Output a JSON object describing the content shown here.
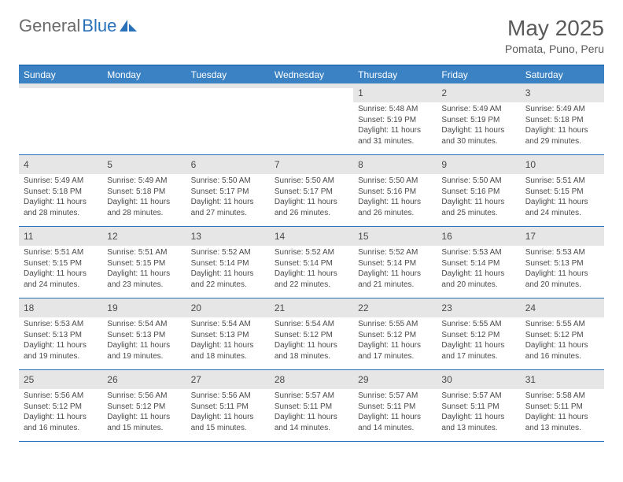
{
  "brand": {
    "text1": "General",
    "text2": "Blue",
    "shape_color": "#2971b8"
  },
  "header": {
    "title": "May 2025",
    "subtitle": "Pomata, Puno, Peru"
  },
  "styling": {
    "header_bg": "#3b82c4",
    "border_color": "#2971b8",
    "daynum_bg": "#e6e6e6",
    "text_color": "#4a4a4a",
    "body_font_size": 10,
    "weekday_font_size": 12
  },
  "weekdays": [
    "Sunday",
    "Monday",
    "Tuesday",
    "Wednesday",
    "Thursday",
    "Friday",
    "Saturday"
  ],
  "weeks": [
    [
      {
        "empty": true
      },
      {
        "empty": true
      },
      {
        "empty": true
      },
      {
        "empty": true
      },
      {
        "day": "1",
        "sunrise": "Sunrise: 5:48 AM",
        "sunset": "Sunset: 5:19 PM",
        "daylight": "Daylight: 11 hours and 31 minutes."
      },
      {
        "day": "2",
        "sunrise": "Sunrise: 5:49 AM",
        "sunset": "Sunset: 5:19 PM",
        "daylight": "Daylight: 11 hours and 30 minutes."
      },
      {
        "day": "3",
        "sunrise": "Sunrise: 5:49 AM",
        "sunset": "Sunset: 5:18 PM",
        "daylight": "Daylight: 11 hours and 29 minutes."
      }
    ],
    [
      {
        "day": "4",
        "sunrise": "Sunrise: 5:49 AM",
        "sunset": "Sunset: 5:18 PM",
        "daylight": "Daylight: 11 hours and 28 minutes."
      },
      {
        "day": "5",
        "sunrise": "Sunrise: 5:49 AM",
        "sunset": "Sunset: 5:18 PM",
        "daylight": "Daylight: 11 hours and 28 minutes."
      },
      {
        "day": "6",
        "sunrise": "Sunrise: 5:50 AM",
        "sunset": "Sunset: 5:17 PM",
        "daylight": "Daylight: 11 hours and 27 minutes."
      },
      {
        "day": "7",
        "sunrise": "Sunrise: 5:50 AM",
        "sunset": "Sunset: 5:17 PM",
        "daylight": "Daylight: 11 hours and 26 minutes."
      },
      {
        "day": "8",
        "sunrise": "Sunrise: 5:50 AM",
        "sunset": "Sunset: 5:16 PM",
        "daylight": "Daylight: 11 hours and 26 minutes."
      },
      {
        "day": "9",
        "sunrise": "Sunrise: 5:50 AM",
        "sunset": "Sunset: 5:16 PM",
        "daylight": "Daylight: 11 hours and 25 minutes."
      },
      {
        "day": "10",
        "sunrise": "Sunrise: 5:51 AM",
        "sunset": "Sunset: 5:15 PM",
        "daylight": "Daylight: 11 hours and 24 minutes."
      }
    ],
    [
      {
        "day": "11",
        "sunrise": "Sunrise: 5:51 AM",
        "sunset": "Sunset: 5:15 PM",
        "daylight": "Daylight: 11 hours and 24 minutes."
      },
      {
        "day": "12",
        "sunrise": "Sunrise: 5:51 AM",
        "sunset": "Sunset: 5:15 PM",
        "daylight": "Daylight: 11 hours and 23 minutes."
      },
      {
        "day": "13",
        "sunrise": "Sunrise: 5:52 AM",
        "sunset": "Sunset: 5:14 PM",
        "daylight": "Daylight: 11 hours and 22 minutes."
      },
      {
        "day": "14",
        "sunrise": "Sunrise: 5:52 AM",
        "sunset": "Sunset: 5:14 PM",
        "daylight": "Daylight: 11 hours and 22 minutes."
      },
      {
        "day": "15",
        "sunrise": "Sunrise: 5:52 AM",
        "sunset": "Sunset: 5:14 PM",
        "daylight": "Daylight: 11 hours and 21 minutes."
      },
      {
        "day": "16",
        "sunrise": "Sunrise: 5:53 AM",
        "sunset": "Sunset: 5:14 PM",
        "daylight": "Daylight: 11 hours and 20 minutes."
      },
      {
        "day": "17",
        "sunrise": "Sunrise: 5:53 AM",
        "sunset": "Sunset: 5:13 PM",
        "daylight": "Daylight: 11 hours and 20 minutes."
      }
    ],
    [
      {
        "day": "18",
        "sunrise": "Sunrise: 5:53 AM",
        "sunset": "Sunset: 5:13 PM",
        "daylight": "Daylight: 11 hours and 19 minutes."
      },
      {
        "day": "19",
        "sunrise": "Sunrise: 5:54 AM",
        "sunset": "Sunset: 5:13 PM",
        "daylight": "Daylight: 11 hours and 19 minutes."
      },
      {
        "day": "20",
        "sunrise": "Sunrise: 5:54 AM",
        "sunset": "Sunset: 5:13 PM",
        "daylight": "Daylight: 11 hours and 18 minutes."
      },
      {
        "day": "21",
        "sunrise": "Sunrise: 5:54 AM",
        "sunset": "Sunset: 5:12 PM",
        "daylight": "Daylight: 11 hours and 18 minutes."
      },
      {
        "day": "22",
        "sunrise": "Sunrise: 5:55 AM",
        "sunset": "Sunset: 5:12 PM",
        "daylight": "Daylight: 11 hours and 17 minutes."
      },
      {
        "day": "23",
        "sunrise": "Sunrise: 5:55 AM",
        "sunset": "Sunset: 5:12 PM",
        "daylight": "Daylight: 11 hours and 17 minutes."
      },
      {
        "day": "24",
        "sunrise": "Sunrise: 5:55 AM",
        "sunset": "Sunset: 5:12 PM",
        "daylight": "Daylight: 11 hours and 16 minutes."
      }
    ],
    [
      {
        "day": "25",
        "sunrise": "Sunrise: 5:56 AM",
        "sunset": "Sunset: 5:12 PM",
        "daylight": "Daylight: 11 hours and 16 minutes."
      },
      {
        "day": "26",
        "sunrise": "Sunrise: 5:56 AM",
        "sunset": "Sunset: 5:12 PM",
        "daylight": "Daylight: 11 hours and 15 minutes."
      },
      {
        "day": "27",
        "sunrise": "Sunrise: 5:56 AM",
        "sunset": "Sunset: 5:11 PM",
        "daylight": "Daylight: 11 hours and 15 minutes."
      },
      {
        "day": "28",
        "sunrise": "Sunrise: 5:57 AM",
        "sunset": "Sunset: 5:11 PM",
        "daylight": "Daylight: 11 hours and 14 minutes."
      },
      {
        "day": "29",
        "sunrise": "Sunrise: 5:57 AM",
        "sunset": "Sunset: 5:11 PM",
        "daylight": "Daylight: 11 hours and 14 minutes."
      },
      {
        "day": "30",
        "sunrise": "Sunrise: 5:57 AM",
        "sunset": "Sunset: 5:11 PM",
        "daylight": "Daylight: 11 hours and 13 minutes."
      },
      {
        "day": "31",
        "sunrise": "Sunrise: 5:58 AM",
        "sunset": "Sunset: 5:11 PM",
        "daylight": "Daylight: 11 hours and 13 minutes."
      }
    ]
  ]
}
